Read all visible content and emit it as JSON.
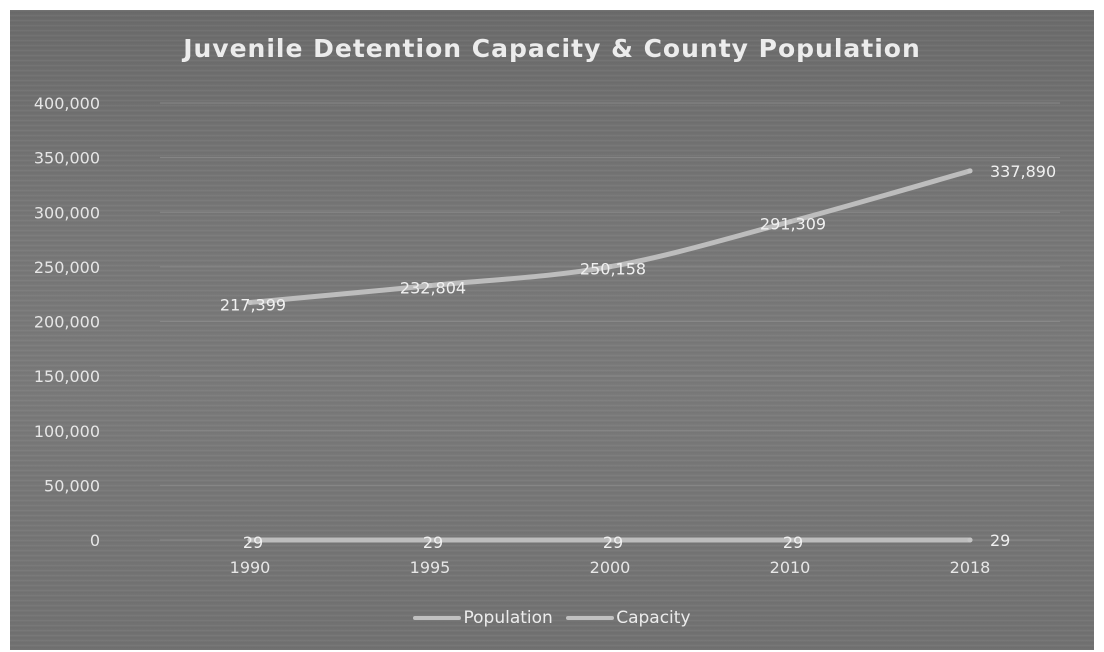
{
  "chart_data": {
    "type": "line",
    "title": "Juvenile Detention Capacity & County Population",
    "categories": [
      "1990",
      "1995",
      "2000",
      "2010",
      "2018"
    ],
    "ylim": [
      0,
      400000
    ],
    "yticks": [
      "0",
      "50,000",
      "100,000",
      "150,000",
      "200,000",
      "250,000",
      "300,000",
      "350,000",
      "400,000"
    ],
    "grid": true,
    "legend_position": "bottom",
    "series": [
      {
        "name": "Population",
        "values": [
          217399,
          232804,
          250158,
          291309,
          337890
        ],
        "labels": [
          "217,399",
          "232,804",
          "250,158",
          "291,309",
          "337,890"
        ]
      },
      {
        "name": "Capacity",
        "values": [
          29,
          29,
          29,
          29,
          29
        ],
        "labels": [
          "29",
          "29",
          "29",
          "29",
          "29"
        ]
      }
    ],
    "colors": {
      "background": "#747474",
      "line": "#bdbdbd",
      "text": "#e8e8e8"
    }
  }
}
